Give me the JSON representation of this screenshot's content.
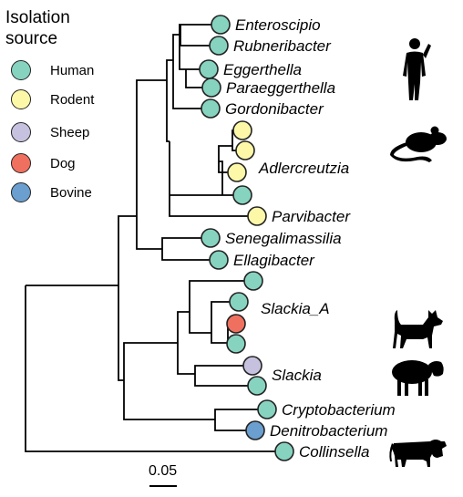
{
  "legend": {
    "title_line1": "Isolation",
    "title_line2": "source",
    "items": [
      {
        "label": "Human",
        "color": "#86d3c0"
      },
      {
        "label": "Rodent",
        "color": "#fdf8a8"
      },
      {
        "label": "Sheep",
        "color": "#c7c1e0"
      },
      {
        "label": "Dog",
        "color": "#f07060"
      },
      {
        "label": "Bovine",
        "color": "#6a9fcf"
      }
    ]
  },
  "taxa": {
    "enteroscipio": "Enteroscipio",
    "rubneribacter": "Rubneribacter",
    "eggerthella": "Eggerthella",
    "paraeggerthella": "Paraeggerthella",
    "gordonibacter": "Gordonibacter",
    "adlercreutzia": "Adlercreutzia",
    "parvibacter": "Parvibacter",
    "senegalimassilia": "Senegalimassilia",
    "ellagibacter": "Ellagibacter",
    "slackia_a": "Slackia_A",
    "slackia": "Slackia",
    "cryptobacterium": "Cryptobacterium",
    "denitrobacterium": "Denitrobacterium",
    "collinsella": "Collinsella"
  },
  "icons": [
    "human-silhouette-icon",
    "mouse-silhouette-icon",
    "dog-silhouette-icon",
    "sheep-silhouette-icon",
    "cow-silhouette-icon"
  ],
  "scale": {
    "label": "0.05"
  }
}
